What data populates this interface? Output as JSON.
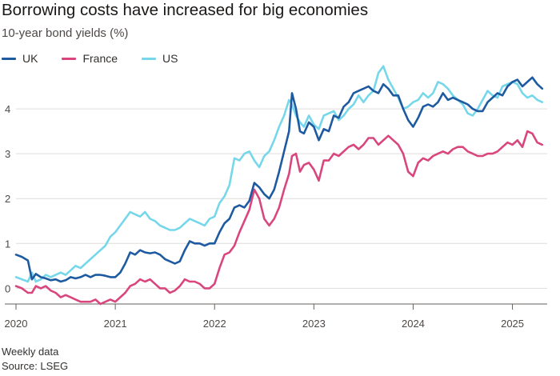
{
  "chart_data": {
    "type": "line",
    "title": "Borrowing costs have increased for big economies",
    "subtitle": "10-year bond yields (%)",
    "x_unit": "year",
    "xlim": [
      2020.0,
      2025.35
    ],
    "ylim": [
      -0.35,
      5.0
    ],
    "y_ticks": [
      0,
      1,
      2,
      3,
      4
    ],
    "y_tick_labels": [
      "0",
      "1",
      "2",
      "3",
      "4"
    ],
    "x_ticks": [
      2020,
      2021,
      2022,
      2023,
      2024,
      2025
    ],
    "x_tick_labels": [
      "2020",
      "2021",
      "2022",
      "2023",
      "2024",
      "2025"
    ],
    "grid": true,
    "legend_position": "top-left",
    "series": [
      {
        "name": "UK",
        "color": "#1d5aa0",
        "x": [
          2020.0,
          2020.06,
          2020.12,
          2020.16,
          2020.2,
          2020.25,
          2020.3,
          2020.35,
          2020.4,
          2020.45,
          2020.5,
          2020.55,
          2020.6,
          2020.65,
          2020.7,
          2020.75,
          2020.8,
          2020.85,
          2020.9,
          2020.95,
          2021.0,
          2021.05,
          2021.1,
          2021.15,
          2021.2,
          2021.25,
          2021.3,
          2021.35,
          2021.4,
          2021.45,
          2021.5,
          2021.55,
          2021.6,
          2021.65,
          2021.7,
          2021.75,
          2021.8,
          2021.85,
          2021.9,
          2021.95,
          2022.0,
          2022.05,
          2022.1,
          2022.15,
          2022.2,
          2022.25,
          2022.3,
          2022.35,
          2022.4,
          2022.45,
          2022.5,
          2022.55,
          2022.6,
          2022.65,
          2022.7,
          2022.75,
          2022.78,
          2022.82,
          2022.86,
          2022.9,
          2022.95,
          2023.0,
          2023.05,
          2023.1,
          2023.15,
          2023.2,
          2023.25,
          2023.3,
          2023.35,
          2023.4,
          2023.45,
          2023.5,
          2023.55,
          2023.6,
          2023.65,
          2023.7,
          2023.75,
          2023.8,
          2023.85,
          2023.9,
          2023.95,
          2024.0,
          2024.05,
          2024.1,
          2024.15,
          2024.2,
          2024.25,
          2024.3,
          2024.35,
          2024.4,
          2024.45,
          2024.5,
          2024.55,
          2024.6,
          2024.65,
          2024.7,
          2024.75,
          2024.8,
          2024.85,
          2024.9,
          2024.95,
          2025.0,
          2025.05,
          2025.1,
          2025.15,
          2025.2,
          2025.25,
          2025.3
        ],
        "values": [
          0.75,
          0.7,
          0.62,
          0.2,
          0.32,
          0.25,
          0.22,
          0.18,
          0.2,
          0.15,
          0.18,
          0.25,
          0.22,
          0.25,
          0.3,
          0.25,
          0.3,
          0.3,
          0.28,
          0.25,
          0.25,
          0.35,
          0.55,
          0.8,
          0.75,
          0.85,
          0.8,
          0.78,
          0.8,
          0.75,
          0.65,
          0.6,
          0.55,
          0.6,
          0.85,
          1.05,
          1.0,
          1.0,
          0.95,
          1.0,
          1.0,
          1.25,
          1.45,
          1.55,
          1.8,
          1.85,
          1.8,
          1.95,
          2.35,
          2.25,
          2.1,
          2.0,
          2.2,
          2.6,
          3.05,
          3.5,
          4.35,
          4.0,
          3.5,
          3.45,
          3.7,
          3.6,
          3.3,
          3.55,
          3.5,
          3.85,
          3.8,
          4.05,
          4.15,
          4.35,
          4.4,
          4.45,
          4.5,
          4.4,
          4.35,
          4.55,
          4.45,
          4.3,
          4.3,
          4.0,
          3.75,
          3.6,
          3.8,
          4.05,
          4.1,
          4.05,
          4.15,
          4.35,
          4.2,
          4.25,
          4.2,
          4.15,
          4.1,
          4.0,
          3.95,
          3.95,
          4.15,
          4.25,
          4.35,
          4.3,
          4.5,
          4.6,
          4.65,
          4.5,
          4.6,
          4.7,
          4.55,
          4.45
        ]
      },
      {
        "name": "France",
        "color": "#d9467d",
        "x": [
          2020.0,
          2020.06,
          2020.12,
          2020.16,
          2020.2,
          2020.25,
          2020.3,
          2020.35,
          2020.4,
          2020.45,
          2020.5,
          2020.55,
          2020.6,
          2020.65,
          2020.7,
          2020.75,
          2020.8,
          2020.85,
          2020.9,
          2020.95,
          2021.0,
          2021.05,
          2021.1,
          2021.15,
          2021.2,
          2021.25,
          2021.3,
          2021.35,
          2021.4,
          2021.45,
          2021.5,
          2021.55,
          2021.6,
          2021.65,
          2021.7,
          2021.75,
          2021.8,
          2021.85,
          2021.9,
          2021.95,
          2022.0,
          2022.05,
          2022.1,
          2022.15,
          2022.2,
          2022.25,
          2022.3,
          2022.35,
          2022.4,
          2022.45,
          2022.5,
          2022.55,
          2022.6,
          2022.65,
          2022.7,
          2022.75,
          2022.78,
          2022.82,
          2022.86,
          2022.9,
          2022.95,
          2023.0,
          2023.05,
          2023.1,
          2023.15,
          2023.2,
          2023.25,
          2023.3,
          2023.35,
          2023.4,
          2023.45,
          2023.5,
          2023.55,
          2023.6,
          2023.65,
          2023.7,
          2023.75,
          2023.8,
          2023.85,
          2023.9,
          2023.95,
          2024.0,
          2024.05,
          2024.1,
          2024.15,
          2024.2,
          2024.25,
          2024.3,
          2024.35,
          2024.4,
          2024.45,
          2024.5,
          2024.55,
          2024.6,
          2024.65,
          2024.7,
          2024.75,
          2024.8,
          2024.85,
          2024.9,
          2024.95,
          2025.0,
          2025.05,
          2025.1,
          2025.15,
          2025.2,
          2025.25,
          2025.3
        ],
        "values": [
          0.05,
          0.0,
          -0.1,
          -0.1,
          0.05,
          0.0,
          0.05,
          -0.05,
          -0.1,
          -0.2,
          -0.15,
          -0.2,
          -0.25,
          -0.3,
          -0.3,
          -0.3,
          -0.25,
          -0.35,
          -0.3,
          -0.25,
          -0.3,
          -0.2,
          -0.1,
          0.05,
          0.1,
          0.2,
          0.15,
          0.2,
          0.1,
          0.0,
          0.0,
          -0.1,
          -0.05,
          0.05,
          0.2,
          0.15,
          0.15,
          0.1,
          0.0,
          0.0,
          0.1,
          0.45,
          0.75,
          0.8,
          0.95,
          1.25,
          1.5,
          1.75,
          2.2,
          2.0,
          1.55,
          1.4,
          1.55,
          1.8,
          2.2,
          2.55,
          2.95,
          3.0,
          2.6,
          2.75,
          2.8,
          2.65,
          2.4,
          2.85,
          2.85,
          3.0,
          2.95,
          3.05,
          3.15,
          3.2,
          3.1,
          3.2,
          3.35,
          3.35,
          3.2,
          3.3,
          3.4,
          3.3,
          3.2,
          3.0,
          2.6,
          2.5,
          2.8,
          2.9,
          2.85,
          2.95,
          3.0,
          3.05,
          3.0,
          3.1,
          3.15,
          3.15,
          3.05,
          3.0,
          2.95,
          2.95,
          3.0,
          3.0,
          3.05,
          3.15,
          3.25,
          3.2,
          3.3,
          3.15,
          3.5,
          3.45,
          3.25,
          3.2
        ]
      },
      {
        "name": "US",
        "color": "#76d7ea",
        "x": [
          2020.0,
          2020.06,
          2020.12,
          2020.16,
          2020.2,
          2020.25,
          2020.3,
          2020.35,
          2020.4,
          2020.45,
          2020.5,
          2020.55,
          2020.6,
          2020.65,
          2020.7,
          2020.75,
          2020.8,
          2020.85,
          2020.9,
          2020.95,
          2021.0,
          2021.05,
          2021.1,
          2021.15,
          2021.2,
          2021.25,
          2021.3,
          2021.35,
          2021.4,
          2021.45,
          2021.5,
          2021.55,
          2021.6,
          2021.65,
          2021.7,
          2021.75,
          2021.8,
          2021.85,
          2021.9,
          2021.95,
          2022.0,
          2022.05,
          2022.1,
          2022.15,
          2022.2,
          2022.25,
          2022.3,
          2022.35,
          2022.4,
          2022.45,
          2022.5,
          2022.55,
          2022.6,
          2022.65,
          2022.7,
          2022.75,
          2022.78,
          2022.82,
          2022.86,
          2022.9,
          2022.95,
          2023.0,
          2023.05,
          2023.1,
          2023.15,
          2023.2,
          2023.25,
          2023.3,
          2023.35,
          2023.4,
          2023.45,
          2023.5,
          2023.55,
          2023.6,
          2023.65,
          2023.7,
          2023.75,
          2023.8,
          2023.85,
          2023.9,
          2023.95,
          2024.0,
          2024.05,
          2024.1,
          2024.15,
          2024.2,
          2024.25,
          2024.3,
          2024.35,
          2024.4,
          2024.45,
          2024.5,
          2024.55,
          2024.6,
          2024.65,
          2024.7,
          2024.75,
          2024.8,
          2024.85,
          2024.9,
          2024.95,
          2025.0,
          2025.05,
          2025.1,
          2025.15,
          2025.2,
          2025.25,
          2025.3
        ],
        "values": [
          0.25,
          0.2,
          0.15,
          0.35,
          0.15,
          0.2,
          0.3,
          0.25,
          0.3,
          0.35,
          0.3,
          0.4,
          0.5,
          0.45,
          0.55,
          0.65,
          0.75,
          0.85,
          0.95,
          1.15,
          1.25,
          1.4,
          1.55,
          1.7,
          1.65,
          1.6,
          1.7,
          1.55,
          1.5,
          1.4,
          1.35,
          1.3,
          1.3,
          1.35,
          1.45,
          1.55,
          1.5,
          1.45,
          1.4,
          1.55,
          1.6,
          1.9,
          2.05,
          2.3,
          2.9,
          2.85,
          3.0,
          3.05,
          2.85,
          2.7,
          2.95,
          3.05,
          3.3,
          3.6,
          3.85,
          4.2,
          4.1,
          3.85,
          3.7,
          3.6,
          3.85,
          3.65,
          3.55,
          3.85,
          3.9,
          3.95,
          3.75,
          3.85,
          4.0,
          4.1,
          4.3,
          4.15,
          4.3,
          4.4,
          4.8,
          4.95,
          4.65,
          4.45,
          4.25,
          4.0,
          4.05,
          4.15,
          4.2,
          4.35,
          4.25,
          4.35,
          4.6,
          4.55,
          4.45,
          4.3,
          4.2,
          4.1,
          3.9,
          3.85,
          4.0,
          4.2,
          4.4,
          4.3,
          4.25,
          4.5,
          4.55,
          4.6,
          4.55,
          4.35,
          4.25,
          4.3,
          4.2,
          4.15
        ]
      }
    ],
    "note": "Weekly data",
    "source": "Source: LSEG"
  }
}
